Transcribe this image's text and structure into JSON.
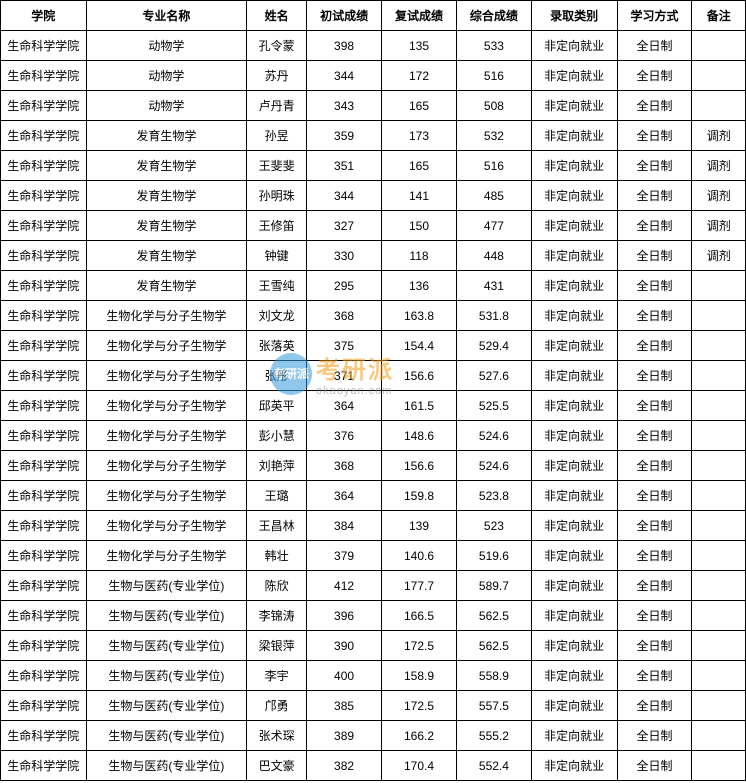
{
  "table": {
    "columns": [
      "学院",
      "专业名称",
      "姓名",
      "初试成绩",
      "复试成绩",
      "综合成绩",
      "录取类别",
      "学习方式",
      "备注"
    ],
    "column_classes": [
      "col-college",
      "col-major",
      "col-name",
      "col-score1",
      "col-score2",
      "col-score3",
      "col-type",
      "col-mode",
      "col-note"
    ],
    "border_color": "#000000",
    "background_color": "#ffffff",
    "font_size": 12,
    "rows": [
      [
        "生命科学学院",
        "动物学",
        "孔令蒙",
        "398",
        "135",
        "533",
        "非定向就业",
        "全日制",
        ""
      ],
      [
        "生命科学学院",
        "动物学",
        "苏丹",
        "344",
        "172",
        "516",
        "非定向就业",
        "全日制",
        ""
      ],
      [
        "生命科学学院",
        "动物学",
        "卢丹青",
        "343",
        "165",
        "508",
        "非定向就业",
        "全日制",
        ""
      ],
      [
        "生命科学学院",
        "发育生物学",
        "孙昱",
        "359",
        "173",
        "532",
        "非定向就业",
        "全日制",
        "调剂"
      ],
      [
        "生命科学学院",
        "发育生物学",
        "王斐斐",
        "351",
        "165",
        "516",
        "非定向就业",
        "全日制",
        "调剂"
      ],
      [
        "生命科学学院",
        "发育生物学",
        "孙明珠",
        "344",
        "141",
        "485",
        "非定向就业",
        "全日制",
        "调剂"
      ],
      [
        "生命科学学院",
        "发育生物学",
        "王修笛",
        "327",
        "150",
        "477",
        "非定向就业",
        "全日制",
        "调剂"
      ],
      [
        "生命科学学院",
        "发育生物学",
        "钟键",
        "330",
        "118",
        "448",
        "非定向就业",
        "全日制",
        "调剂"
      ],
      [
        "生命科学学院",
        "发育生物学",
        "王雪纯",
        "295",
        "136",
        "431",
        "非定向就业",
        "全日制",
        ""
      ],
      [
        "生命科学学院",
        "生物化学与分子生物学",
        "刘文龙",
        "368",
        "163.8",
        "531.8",
        "非定向就业",
        "全日制",
        ""
      ],
      [
        "生命科学学院",
        "生物化学与分子生物学",
        "张落英",
        "375",
        "154.4",
        "529.4",
        "非定向就业",
        "全日制",
        ""
      ],
      [
        "生命科学学院",
        "生物化学与分子生物学",
        "张彤",
        "371",
        "156.6",
        "527.6",
        "非定向就业",
        "全日制",
        ""
      ],
      [
        "生命科学学院",
        "生物化学与分子生物学",
        "邱英平",
        "364",
        "161.5",
        "525.5",
        "非定向就业",
        "全日制",
        ""
      ],
      [
        "生命科学学院",
        "生物化学与分子生物学",
        "彭小慧",
        "376",
        "148.6",
        "524.6",
        "非定向就业",
        "全日制",
        ""
      ],
      [
        "生命科学学院",
        "生物化学与分子生物学",
        "刘艳萍",
        "368",
        "156.6",
        "524.6",
        "非定向就业",
        "全日制",
        ""
      ],
      [
        "生命科学学院",
        "生物化学与分子生物学",
        "王璐",
        "364",
        "159.8",
        "523.8",
        "非定向就业",
        "全日制",
        ""
      ],
      [
        "生命科学学院",
        "生物化学与分子生物学",
        "王昌林",
        "384",
        "139",
        "523",
        "非定向就业",
        "全日制",
        ""
      ],
      [
        "生命科学学院",
        "生物化学与分子生物学",
        "韩壮",
        "379",
        "140.6",
        "519.6",
        "非定向就业",
        "全日制",
        ""
      ],
      [
        "生命科学学院",
        "生物与医药(专业学位)",
        "陈欣",
        "412",
        "177.7",
        "589.7",
        "非定向就业",
        "全日制",
        ""
      ],
      [
        "生命科学学院",
        "生物与医药(专业学位)",
        "李锦涛",
        "396",
        "166.5",
        "562.5",
        "非定向就业",
        "全日制",
        ""
      ],
      [
        "生命科学学院",
        "生物与医药(专业学位)",
        "梁银萍",
        "390",
        "172.5",
        "562.5",
        "非定向就业",
        "全日制",
        ""
      ],
      [
        "生命科学学院",
        "生物与医药(专业学位)",
        "李宇",
        "400",
        "158.9",
        "558.9",
        "非定向就业",
        "全日制",
        ""
      ],
      [
        "生命科学学院",
        "生物与医药(专业学位)",
        "邝勇",
        "385",
        "172.5",
        "557.5",
        "非定向就业",
        "全日制",
        ""
      ],
      [
        "生命科学学院",
        "生物与医药(专业学位)",
        "张术琛",
        "389",
        "166.2",
        "555.2",
        "非定向就业",
        "全日制",
        ""
      ],
      [
        "生命科学学院",
        "生物与医药(专业学位)",
        "巴文豪",
        "382",
        "170.4",
        "552.4",
        "非定向就业",
        "全日制",
        ""
      ]
    ]
  },
  "watermark": {
    "logo_bg_color": "#3498db",
    "logo_inner_text": "考研派",
    "main_text": "考研派",
    "main_color": "#f39c12",
    "sub_text": "okaoyan.com",
    "sub_color": "#888888",
    "opacity": 0.55
  }
}
